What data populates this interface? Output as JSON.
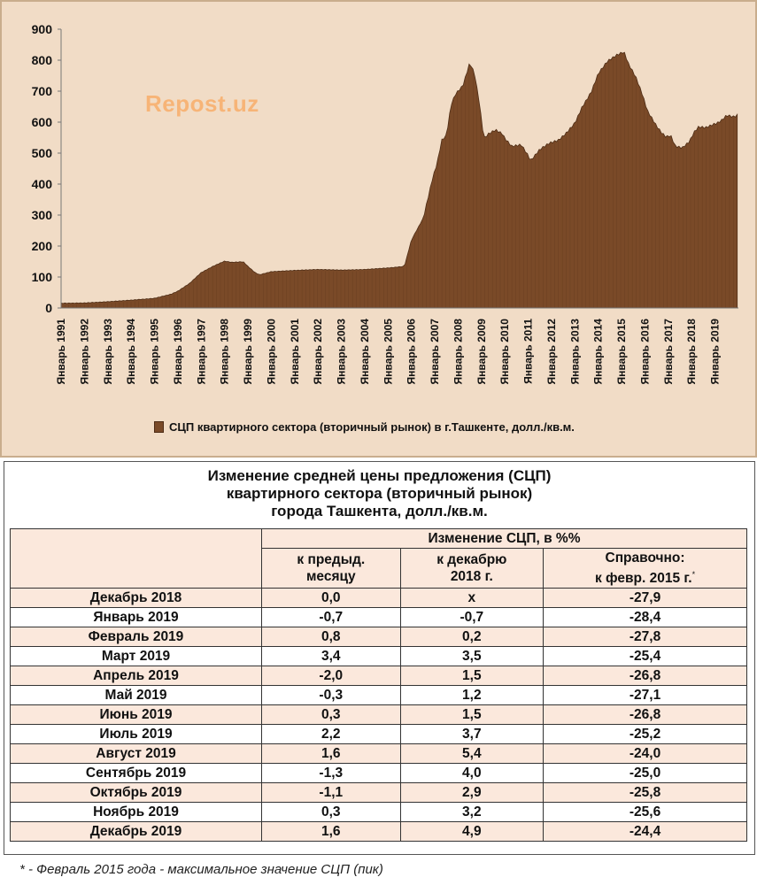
{
  "chart_data": {
    "type": "area",
    "title": "",
    "y_ticks": [
      "900",
      "800",
      "700",
      "600",
      "500",
      "400",
      "300",
      "200",
      "100",
      "0"
    ],
    "ylim": [
      0,
      900
    ],
    "x_ticks": [
      "Январь 1991",
      "Январь 1992",
      "Январь 1993",
      "Январь 1994",
      "Январь 1995",
      "Январь 1996",
      "Январь 1997",
      "Январь 1998",
      "Январь 1999",
      "Январь 2000",
      "Январь 2001",
      "Январь 2002",
      "Январь 2003",
      "Январь 2004",
      "Январь 2005",
      "Январь 2006",
      "Январь 2007",
      "Январь 2008",
      "Январь 2009",
      "Январь 2010",
      "Январь 2011",
      "Январь 2012",
      "Январь 2013",
      "Январь 2014",
      "Январь 2015",
      "Январь 2016",
      "Январь 2017",
      "Январь 2018",
      "Январь 2019"
    ],
    "series": [
      {
        "name": "СЦП квартирного  сектора (вторичный рынок) в г.Ташкенте, долл./кв.м.",
        "points": [
          [
            1991.0,
            16
          ],
          [
            1992.0,
            17
          ],
          [
            1993.0,
            21
          ],
          [
            1994.0,
            26
          ],
          [
            1995.0,
            32
          ],
          [
            1995.7,
            45
          ],
          [
            1996.0,
            55
          ],
          [
            1996.5,
            80
          ],
          [
            1997.0,
            115
          ],
          [
            1997.5,
            135
          ],
          [
            1998.0,
            152
          ],
          [
            1998.3,
            148
          ],
          [
            1998.8,
            150
          ],
          [
            1999.0,
            135
          ],
          [
            1999.3,
            115
          ],
          [
            1999.5,
            108
          ],
          [
            2000.0,
            118
          ],
          [
            2001.0,
            122
          ],
          [
            2002.0,
            125
          ],
          [
            2003.0,
            123
          ],
          [
            2004.0,
            125
          ],
          [
            2005.0,
            130
          ],
          [
            2005.7,
            135
          ],
          [
            2006.0,
            220
          ],
          [
            2006.5,
            290
          ],
          [
            2006.9,
            420
          ],
          [
            2007.1,
            470
          ],
          [
            2007.3,
            545
          ],
          [
            2007.5,
            560
          ],
          [
            2007.7,
            660
          ],
          [
            2007.9,
            695
          ],
          [
            2008.2,
            720
          ],
          [
            2008.5,
            795
          ],
          [
            2008.7,
            760
          ],
          [
            2008.9,
            670
          ],
          [
            2009.1,
            550
          ],
          [
            2009.3,
            565
          ],
          [
            2009.6,
            578
          ],
          [
            2009.9,
            565
          ],
          [
            2010.0,
            550
          ],
          [
            2010.3,
            525
          ],
          [
            2010.7,
            530
          ],
          [
            2011.0,
            495
          ],
          [
            2011.1,
            478
          ],
          [
            2011.5,
            515
          ],
          [
            2011.9,
            535
          ],
          [
            2012.3,
            545
          ],
          [
            2012.6,
            565
          ],
          [
            2013.0,
            600
          ],
          [
            2013.3,
            650
          ],
          [
            2013.7,
            700
          ],
          [
            2014.0,
            760
          ],
          [
            2014.4,
            800
          ],
          [
            2014.8,
            820
          ],
          [
            2015.1,
            830
          ],
          [
            2015.3,
            790
          ],
          [
            2015.6,
            750
          ],
          [
            2015.9,
            690
          ],
          [
            2016.1,
            640
          ],
          [
            2016.5,
            590
          ],
          [
            2016.7,
            570
          ],
          [
            2016.9,
            555
          ],
          [
            2017.1,
            560
          ],
          [
            2017.3,
            525
          ],
          [
            2017.6,
            520
          ],
          [
            2017.9,
            540
          ],
          [
            2018.1,
            570
          ],
          [
            2018.3,
            588
          ],
          [
            2018.6,
            585
          ],
          [
            2018.9,
            595
          ],
          [
            2019.1,
            600
          ],
          [
            2019.3,
            610
          ],
          [
            2019.5,
            625
          ],
          [
            2019.8,
            620
          ],
          [
            2019.95,
            625
          ]
        ]
      }
    ]
  },
  "watermark": "Repost.uz",
  "legend_label": "СЦП квартирного  сектора (вторичный рынок) в г.Ташкенте, долл./кв.м.",
  "colors": {
    "fill": "#7a4a28",
    "stroke": "#4d2c15",
    "panel": "#f1dcc6",
    "accent_row": "#fbe8dc"
  },
  "table": {
    "title": [
      "Изменение средней цены предложения (СЦП)",
      "квартирного сектора (вторичный рынок)",
      "города Ташкента, долл./кв.м."
    ],
    "group_header": "Изменение СЦП, в %%",
    "col1_header": [
      "к предыд.",
      "месяцу"
    ],
    "col2_header": [
      "к декабрю",
      "2018 г."
    ],
    "col3_header": [
      "Справочно:",
      "к февр. 2015 г."
    ],
    "col3_mark": "*",
    "rows": [
      {
        "label": "Декабрь 2018",
        "c1": "0,0",
        "c2": "х",
        "c3": "-27,9"
      },
      {
        "label": "Январь 2019",
        "c1": "-0,7",
        "c2": "-0,7",
        "c3": "-28,4"
      },
      {
        "label": "Февраль 2019",
        "c1": "0,8",
        "c2": "0,2",
        "c3": "-27,8"
      },
      {
        "label": "Март 2019",
        "c1": "3,4",
        "c2": "3,5",
        "c3": "-25,4"
      },
      {
        "label": "Апрель 2019",
        "c1": "-2,0",
        "c2": "1,5",
        "c3": "-26,8"
      },
      {
        "label": "Май 2019",
        "c1": "-0,3",
        "c2": "1,2",
        "c3": "-27,1"
      },
      {
        "label": "Июнь 2019",
        "c1": "0,3",
        "c2": "1,5",
        "c3": "-26,8"
      },
      {
        "label": "Июль 2019",
        "c1": "2,2",
        "c2": "3,7",
        "c3": "-25,2"
      },
      {
        "label": "Август 2019",
        "c1": "1,6",
        "c2": "5,4",
        "c3": "-24,0"
      },
      {
        "label": "Сентябрь 2019",
        "c1": "-1,3",
        "c2": "4,0",
        "c3": "-25,0"
      },
      {
        "label": "Октябрь 2019",
        "c1": "-1,1",
        "c2": "2,9",
        "c3": "-25,8"
      },
      {
        "label": "Ноябрь 2019",
        "c1": "0,3",
        "c2": "3,2",
        "c3": "-25,6"
      },
      {
        "label": "Декабрь 2019",
        "c1": "1,6",
        "c2": "4,9",
        "c3": "-24,4"
      }
    ]
  },
  "footnote": "* - Февраль 2015 года - максимальное значение СЦП (пик)"
}
